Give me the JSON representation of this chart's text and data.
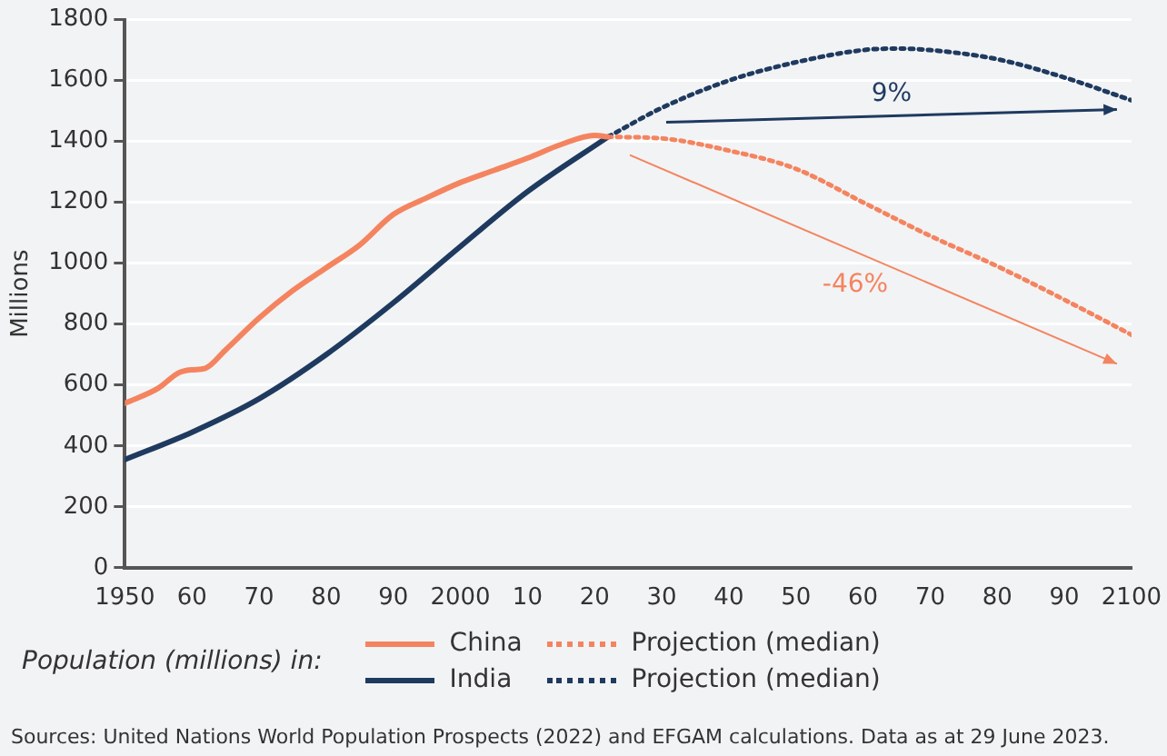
{
  "chart_data": {
    "type": "line",
    "ylabel": "Millions",
    "legend_title": "Population (millions) in:",
    "legend": "bottom",
    "grid": "y",
    "xlim": [
      1950,
      2100
    ],
    "ylim": [
      0,
      1800
    ],
    "xticks": [
      1950,
      {
        "value": 1960,
        "label": "60"
      },
      {
        "value": 1970,
        "label": "70"
      },
      {
        "value": 1980,
        "label": "80"
      },
      {
        "value": 1990,
        "label": "90"
      },
      2000,
      {
        "value": 2010,
        "label": "10"
      },
      {
        "value": 2020,
        "label": "20"
      },
      {
        "value": 2030,
        "label": "30"
      },
      {
        "value": 2040,
        "label": "40"
      },
      {
        "value": 2050,
        "label": "50"
      },
      {
        "value": 2060,
        "label": "60"
      },
      {
        "value": 2070,
        "label": "70"
      },
      {
        "value": 2080,
        "label": "80"
      },
      {
        "value": 2090,
        "label": "90"
      },
      2100
    ],
    "yticks": [
      0,
      200,
      400,
      600,
      800,
      1000,
      1200,
      1400,
      1600,
      1800
    ],
    "series": [
      {
        "name": "China",
        "color": "#f4845f",
        "line_style": "solid",
        "x": [
          1950,
          1955,
          1958,
          1960,
          1962,
          1965,
          1970,
          1975,
          1980,
          1985,
          1990,
          1995,
          2000,
          2005,
          2010,
          2015,
          2020,
          2022
        ],
        "values": [
          540,
          590,
          640,
          650,
          655,
          715,
          820,
          910,
          985,
          1060,
          1160,
          1215,
          1265,
          1305,
          1345,
          1390,
          1420,
          1415
        ]
      },
      {
        "name": "India",
        "color": "#1f3a5f",
        "line_style": "solid",
        "x": [
          1950,
          1960,
          1970,
          1980,
          1990,
          2000,
          2010,
          2022
        ],
        "values": [
          355,
          445,
          555,
          700,
          870,
          1055,
          1235,
          1415
        ]
      },
      {
        "name": "Projection (median)",
        "color": "#f4845f",
        "line_style": "dotted",
        "x": [
          2022,
          2030,
          2040,
          2050,
          2060,
          2070,
          2080,
          2090,
          2100
        ],
        "values": [
          1415,
          1410,
          1370,
          1310,
          1200,
          1090,
          990,
          880,
          765
        ]
      },
      {
        "name": "Projection (median)",
        "color": "#1f3a5f",
        "line_style": "dotted",
        "x": [
          2022,
          2030,
          2040,
          2050,
          2060,
          2065,
          2070,
          2080,
          2090,
          2100
        ],
        "values": [
          1415,
          1510,
          1600,
          1660,
          1700,
          1705,
          1700,
          1670,
          1610,
          1535
        ]
      }
    ],
    "annotations": [
      "9%",
      "-46%",
      "Sources: United Nations World Population Prospects (2022) and EFGAM calculations. Data as at 29 June 2023."
    ]
  }
}
